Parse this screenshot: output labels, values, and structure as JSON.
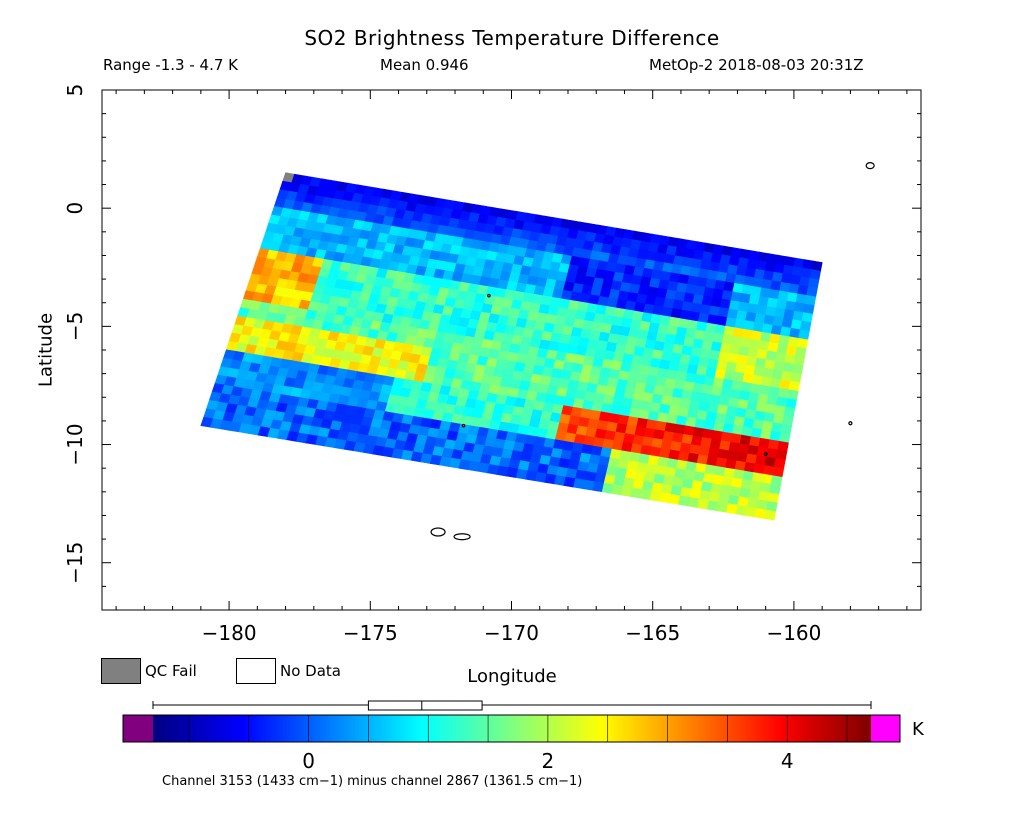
{
  "chart_data": {
    "type": "heatmap",
    "title": "SO2 Brightness Temperature Difference",
    "range_text": "Range -1.3 - 4.7 K",
    "mean_text": "Mean 0.946",
    "instrument_text": "MetOp-2 2018-08-03 20:31Z",
    "xlabel": "Longitude",
    "ylabel": "Latitude",
    "xlim": [
      -184.5,
      -155.5
    ],
    "ylim": [
      -17,
      5
    ],
    "x_ticks": [
      {
        "value": -180,
        "label": "−180"
      },
      {
        "value": -175,
        "label": "−175"
      },
      {
        "value": -170,
        "label": "−170"
      },
      {
        "value": -165,
        "label": "−165"
      },
      {
        "value": -160,
        "label": "−160"
      }
    ],
    "y_ticks": [
      {
        "value": 5,
        "label": "5"
      },
      {
        "value": 0,
        "label": "0"
      },
      {
        "value": -5,
        "label": "−5"
      },
      {
        "value": -10,
        "label": "−10"
      },
      {
        "value": -15,
        "label": "−15"
      }
    ],
    "swath_corners": [
      {
        "lon": -178.0,
        "lat": 1.5
      },
      {
        "lon": -159.0,
        "lat": -2.3
      },
      {
        "lon": -160.7,
        "lat": -13.2
      },
      {
        "lon": -181.0,
        "lat": -9.2
      }
    ],
    "colorbar": {
      "min": -1.3,
      "max": 4.7,
      "unit": "K",
      "ticks": [
        {
          "value": 0,
          "label": "0"
        },
        {
          "value": 2,
          "label": "2"
        },
        {
          "value": 4,
          "label": "4"
        }
      ],
      "below_range_color": "#800080",
      "above_range_color": "#ff00ff",
      "stops": [
        "#00007f",
        "#0000ff",
        "#007fff",
        "#00ffff",
        "#7fff7f",
        "#ffff00",
        "#ff7f00",
        "#ff0000",
        "#7f0000"
      ],
      "box_summary": {
        "q1": 0.5,
        "median": 0.946,
        "q3": 1.45,
        "min": -1.3,
        "max": 4.7
      }
    },
    "legend": [
      {
        "label": "QC Fail",
        "color": "#808080"
      },
      {
        "label": "No Data",
        "color": "#ffffff"
      }
    ],
    "footnote": "Channel 3153 (1433 cm−1) minus channel 2867 (1361.5 cm−1)",
    "grid": false
  }
}
